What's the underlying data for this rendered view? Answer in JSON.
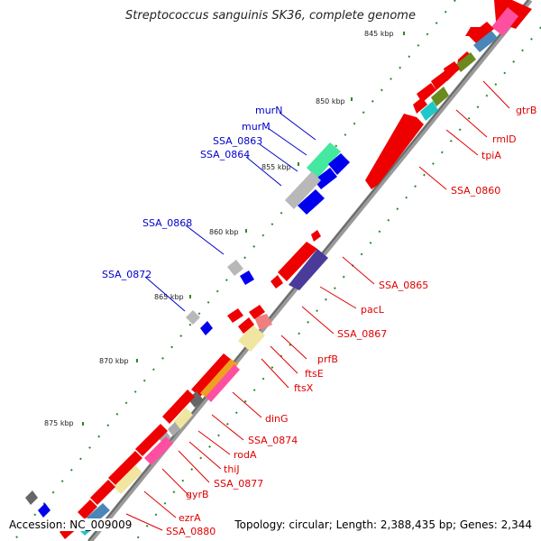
{
  "title": "Streptococcus sanguinis SK36, complete genome",
  "footer": {
    "accession": "Accession: NC_009009",
    "summary": "Topology: circular; Length: 2,388,435 bp; Genes: 2,344"
  },
  "colors": {
    "forward_gene": "#ee0000",
    "reverse_gene": "#0000ee",
    "backbone": "#808080",
    "tick": "#2a8a2a",
    "label_forward": "#e00000",
    "label_reverse": "#0000cc"
  },
  "kbp_ticks": [
    "845 kbp",
    "850 kbp",
    "855 kbp",
    "860 kbp",
    "865 kbp",
    "870 kbp",
    "875 kbp"
  ],
  "gene_labels_forward": [
    "gtrB",
    "rmlD",
    "tpiA",
    "SSA_0860",
    "SSA_0865",
    "pacL",
    "SSA_0867",
    "prfB",
    "ftsE",
    "ftsX",
    "dinG",
    "SSA_0874",
    "rodA",
    "thiJ",
    "SSA_0877",
    "gyrB",
    "ezrA",
    "SSA_0880"
  ],
  "gene_labels_reverse": [
    "murN",
    "murM",
    "SSA_0863",
    "SSA_0864",
    "SSA_0868",
    "SSA_0872"
  ]
}
